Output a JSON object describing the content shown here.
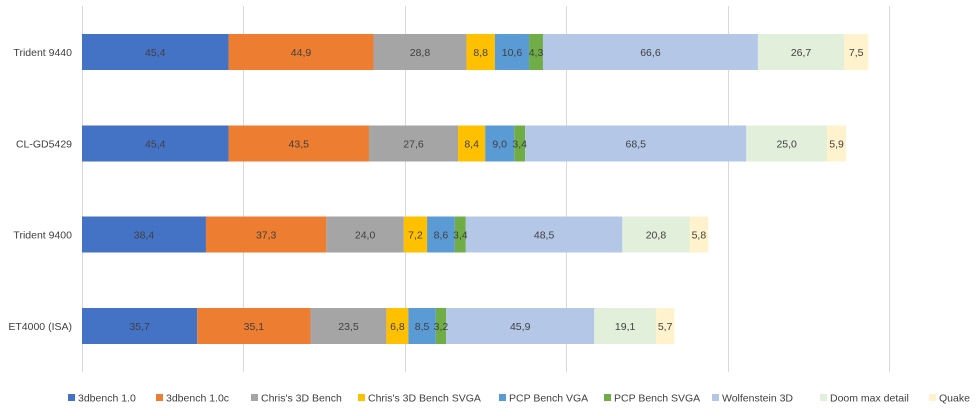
{
  "chart_data": {
    "type": "bar",
    "orientation": "horizontal",
    "stacked": true,
    "categories": [
      "Trident 9440",
      "CL-GD5429",
      "Trident 9400",
      "ET4000 (ISA)"
    ],
    "series": [
      {
        "name": "3dbench 1.0",
        "color": "#4472C4",
        "values": [
          45.4,
          45.4,
          38.4,
          35.7
        ],
        "labels": [
          "45,4",
          "45,4",
          "38,4",
          "35,7"
        ]
      },
      {
        "name": "3dbench 1.0c",
        "color": "#ED7D31",
        "values": [
          44.9,
          43.5,
          37.3,
          35.1
        ],
        "labels": [
          "44,9",
          "43,5",
          "37,3",
          "35,1"
        ]
      },
      {
        "name": "Chris's 3D Bench",
        "color": "#A5A5A5",
        "values": [
          28.8,
          27.6,
          24.0,
          23.5
        ],
        "labels": [
          "28,8",
          "27,6",
          "24,0",
          "23,5"
        ]
      },
      {
        "name": "Chris's 3D Bench SVGA",
        "color": "#FFC000",
        "values": [
          8.8,
          8.4,
          7.2,
          6.8
        ],
        "labels": [
          "8,8",
          "8,4",
          "7,2",
          "6,8"
        ]
      },
      {
        "name": "PCP Bench VGA",
        "color": "#5B9BD5",
        "values": [
          10.6,
          9.0,
          8.6,
          8.5
        ],
        "labels": [
          "10,6",
          "9,0",
          "8,6",
          "8,5"
        ]
      },
      {
        "name": "PCP Bench SVGA",
        "color": "#70AD47",
        "values": [
          4.3,
          3.4,
          3.4,
          3.2
        ],
        "labels": [
          "4,3",
          "3,4",
          "3,4",
          "3,2"
        ]
      },
      {
        "name": "Wolfenstein 3D",
        "color": "#B4C7E7",
        "values": [
          66.6,
          68.5,
          48.5,
          45.9
        ],
        "labels": [
          "66,6",
          "68,5",
          "48,5",
          "45,9"
        ]
      },
      {
        "name": "Doom max detail",
        "color": "#E2EFDA",
        "values": [
          26.7,
          25.0,
          20.8,
          19.1
        ],
        "labels": [
          "26,7",
          "25,0",
          "20,8",
          "19,1"
        ]
      },
      {
        "name": "Quake",
        "color": "#FFF2CC",
        "values": [
          7.5,
          5.9,
          5.8,
          5.7
        ],
        "labels": [
          "7,5",
          "5,9",
          "5,8",
          "5,7"
        ]
      }
    ],
    "xlim": [
      0,
      280
    ],
    "grid": true,
    "legend_position": "bottom",
    "title": "",
    "xlabel": "",
    "ylabel": ""
  }
}
